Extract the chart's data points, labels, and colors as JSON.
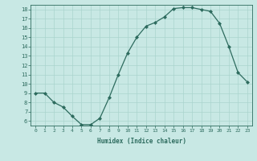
{
  "x": [
    0,
    1,
    2,
    3,
    4,
    5,
    6,
    7,
    8,
    9,
    10,
    11,
    12,
    13,
    14,
    15,
    16,
    17,
    18,
    19,
    20,
    21,
    22,
    23
  ],
  "y": [
    9,
    9,
    8,
    7.5,
    6.5,
    5.6,
    5.6,
    6.3,
    8.5,
    11,
    13.3,
    15,
    16.2,
    16.6,
    17.2,
    18.1,
    18.2,
    18.2,
    18.0,
    17.8,
    16.5,
    14.0,
    11.2,
    10.2
  ],
  "line_color": "#2d6b5e",
  "marker_color": "#2d6b5e",
  "bg_color": "#c8e8e4",
  "grid_color": "#aad4ce",
  "xlabel": "Humidex (Indice chaleur)",
  "xlim": [
    -0.5,
    23.5
  ],
  "ylim": [
    5.5,
    18.5
  ],
  "yticks": [
    6,
    7,
    8,
    9,
    10,
    11,
    12,
    13,
    14,
    15,
    16,
    17,
    18
  ],
  "xticks": [
    0,
    1,
    2,
    3,
    4,
    5,
    6,
    7,
    8,
    9,
    10,
    11,
    12,
    13,
    14,
    15,
    16,
    17,
    18,
    19,
    20,
    21,
    22,
    23
  ]
}
